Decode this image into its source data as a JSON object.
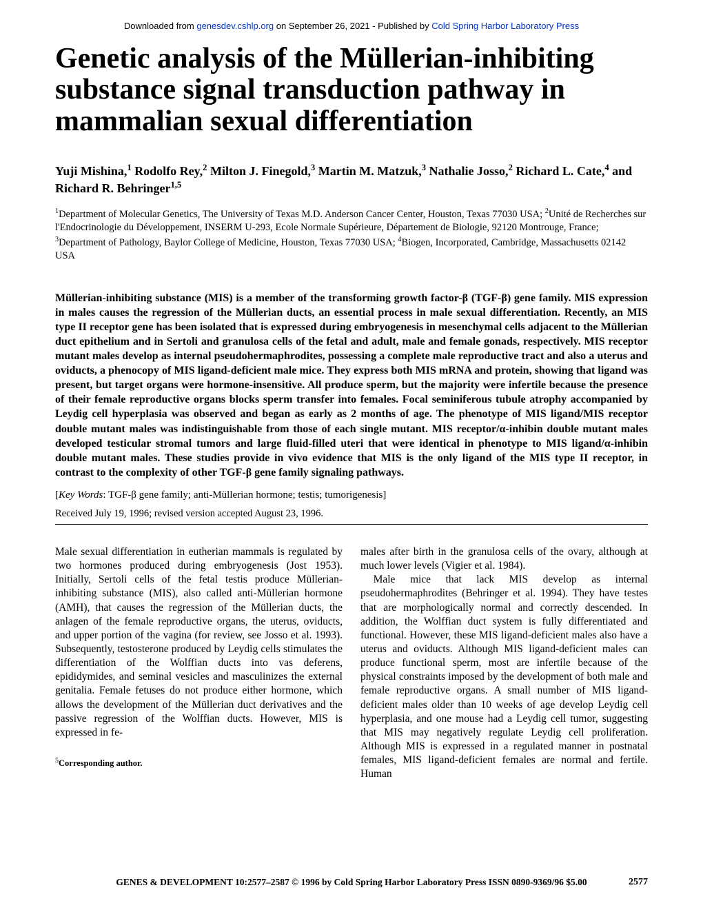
{
  "banner": {
    "prefix": "Downloaded from ",
    "link1_text": "genesdev.cshlp.org",
    "mid": " on September 26, 2021 - Published by ",
    "link2_text": "Cold Spring Harbor Laboratory Press"
  },
  "title": "Genetic analysis of the Müllerian-inhibiting substance signal transduction pathway in mammalian sexual differentiation",
  "authors_html": "Yuji Mishina,<sup>1</sup> Rodolfo Rey,<sup>2</sup> Milton J. Finegold,<sup>3</sup> Martin M. Matzuk,<sup>3</sup> Nathalie Josso,<sup>2</sup> Richard L. Cate,<sup>4</sup> and Richard R. Behringer<sup>1,5</sup>",
  "affiliations_html": "<sup>1</sup>Department of Molecular Genetics, The University of Texas M.D. Anderson Cancer Center, Houston, Texas 77030 USA; <sup>2</sup>Unité de Recherches sur l'Endocrinologie du Développement, INSERM U-293, Ecole Normale Supérieure, Département de Biologie, 92120 Montrouge, France; <sup>3</sup>Department of Pathology, Baylor College of Medicine, Houston, Texas 77030 USA; <sup>4</sup>Biogen, Incorporated, Cambridge, Massachusetts 02142 USA",
  "abstract": "Müllerian-inhibiting substance (MIS) is a member of the transforming growth factor-β (TGF-β) gene family. MIS expression in males causes the regression of the Müllerian ducts, an essential process in male sexual differentiation. Recently, an MIS type II receptor gene has been isolated that is expressed during embryogenesis in mesenchymal cells adjacent to the Müllerian duct epithelium and in Sertoli and granulosa cells of the fetal and adult, male and female gonads, respectively. MIS receptor mutant males develop as internal pseudohermaphrodites, possessing a complete male reproductive tract and also a uterus and oviducts, a phenocopy of MIS ligand-deficient male mice. They express both MIS mRNA and protein, showing that ligand was present, but target organs were hormone-insensitive. All produce sperm, but the majority were infertile because the presence of their female reproductive organs blocks sperm transfer into females. Focal seminiferous tubule atrophy accompanied by Leydig cell hyperplasia was observed and began as early as 2 months of age. The phenotype of MIS ligand/MIS receptor double mutant males was indistinguishable from those of each single mutant. MIS receptor/α-inhibin double mutant males developed testicular stromal tumors and large fluid-filled uteri that were identical in phenotype to MIS ligand/α-inhibin double mutant males. These studies provide in vivo evidence that MIS is the only ligand of the MIS type II receptor, in contrast to the complexity of other TGF-β gene family signaling pathways.",
  "keywords_label": "Key Words",
  "keywords": "TGF-β gene family; anti-Müllerian hormone; testis; tumorigenesis",
  "received": "Received July 19, 1996; revised version accepted August 23, 1996.",
  "body": {
    "col1_p1": "Male sexual differentiation in eutherian mammals is regulated by two hormones produced during embryogenesis (Jost 1953). Initially, Sertoli cells of the fetal testis produce Müllerian-inhibiting substance (MIS), also called anti-Müllerian hormone (AMH), that causes the regression of the Müllerian ducts, the anlagen of the female reproductive organs, the uterus, oviducts, and upper portion of the vagina (for review, see Josso et al. 1993). Subsequently, testosterone produced by Leydig cells stimulates the differentiation of the Wolffian ducts into vas deferens, epididymides, and seminal vesicles and masculinizes the external genitalia. Female fetuses do not produce either hormone, which allows the development of the Müllerian duct derivatives and the passive regression of the Wolffian ducts. However, MIS is expressed in fe-",
    "col2_p1": "males after birth in the granulosa cells of the ovary, although at much lower levels (Vigier et al. 1984).",
    "col2_p2": "Male mice that lack MIS develop as internal pseudohermaphrodites (Behringer et al. 1994). They have testes that are morphologically normal and correctly descended. In addition, the Wolffian duct system is fully differentiated and functional. However, these MIS ligand-deficient males also have a uterus and oviducts. Although MIS ligand-deficient males can produce functional sperm, most are infertile because of the physical constraints imposed by the development of both male and female reproductive organs. A small number of MIS ligand-deficient males older than 10 weeks of age develop Leydig cell hyperplasia, and one mouse had a Leydig cell tumor, suggesting that MIS may negatively regulate Leydig cell proliferation. Although MIS is expressed in a regulated manner in postnatal females, MIS ligand-deficient females are normal and fertile. Human"
  },
  "corresponding_html": "<sup>5</sup><b>Corresponding author.</b>",
  "footer": "GENES & DEVELOPMENT 10:2577–2587 © 1996 by Cold Spring Harbor Laboratory Press ISSN 0890-9369/96 $5.00",
  "page_number": "2577"
}
